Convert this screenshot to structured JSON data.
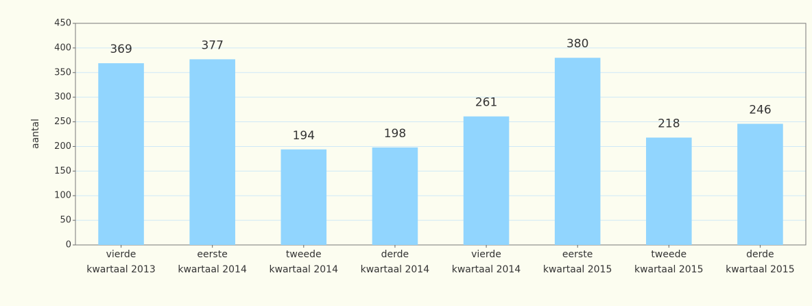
{
  "chart_data": {
    "type": "bar",
    "y_label": "aantal",
    "categories": [
      "vierde\nkwartaal 2013",
      "eerste\nkwartaal 2014",
      "tweede\nkwartaal 2014",
      "derde\nkwartaal 2014",
      "vierde\nkwartaal 2014",
      "eerste\nkwartaal 2015",
      "tweede\nkwartaal 2015",
      "derde\nkwartaal 2015"
    ],
    "values": [
      369,
      377,
      194,
      198,
      261,
      380,
      218,
      246
    ],
    "color": "#91d5fe",
    "ylim": [
      0,
      450
    ],
    "yticks": [
      0,
      50,
      100,
      150,
      200,
      250,
      300,
      350,
      400,
      450
    ],
    "grid": true
  }
}
